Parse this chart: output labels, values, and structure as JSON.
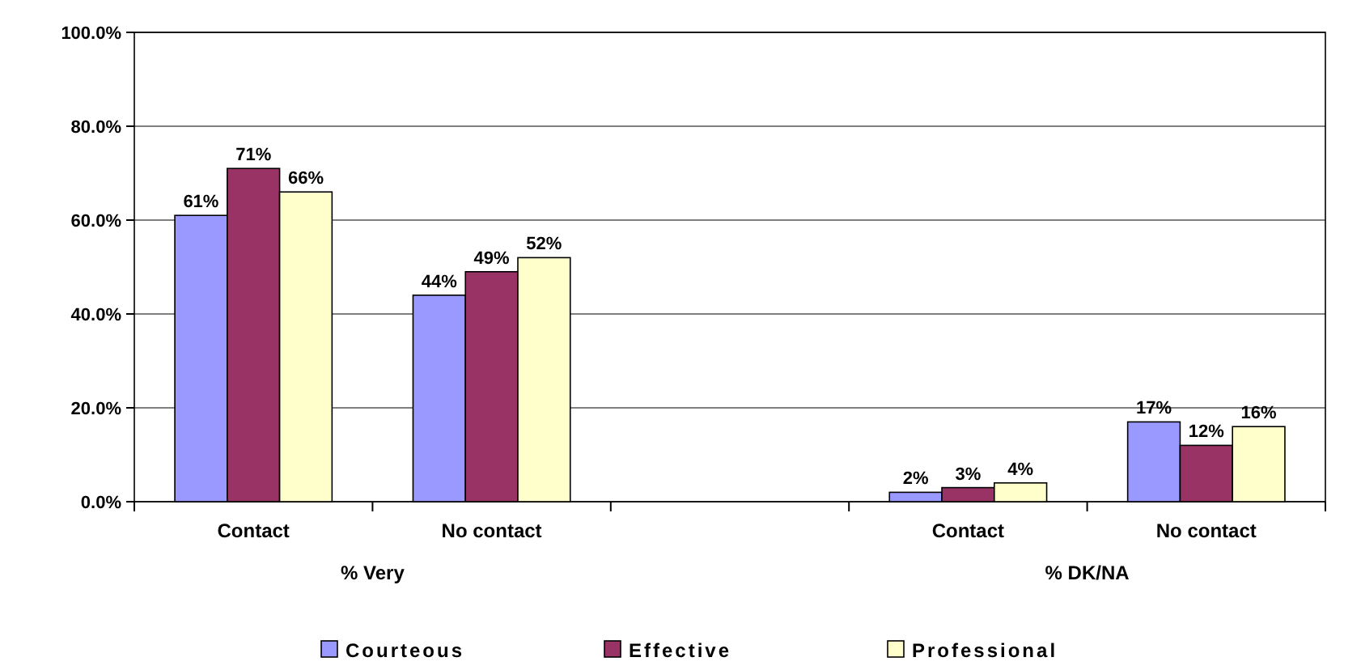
{
  "chart_data": {
    "type": "bar",
    "categories": [
      "Contact",
      "No contact",
      null,
      "Contact",
      "No contact"
    ],
    "series": [
      {
        "name": "Courteous",
        "color": "#9999ff",
        "values": [
          61,
          44,
          null,
          2,
          17
        ],
        "value_labels": [
          "61%",
          "44%",
          null,
          "2%",
          "17%"
        ]
      },
      {
        "name": "Effective",
        "color": "#993366",
        "values": [
          71,
          49,
          null,
          3,
          12
        ],
        "value_labels": [
          "71%",
          "49%",
          null,
          "3%",
          "12%"
        ]
      },
      {
        "name": "Professional",
        "color": "#ffffcc",
        "values": [
          66,
          52,
          null,
          4,
          16
        ],
        "value_labels": [
          "66%",
          "52%",
          null,
          "4%",
          "16%"
        ]
      }
    ],
    "annotations": [
      "% Very",
      "% DK/NA"
    ],
    "ylim": [
      0,
      100
    ],
    "yticks": [
      {
        "value": 0,
        "label": "0.0%"
      },
      {
        "value": 20,
        "label": "20.0%"
      },
      {
        "value": 40,
        "label": "40.0%"
      },
      {
        "value": 60,
        "label": "60.0%"
      },
      {
        "value": 80,
        "label": "80.0%"
      },
      {
        "value": 100,
        "label": "100.0%"
      }
    ],
    "grid": "y",
    "legend": "bottom"
  }
}
